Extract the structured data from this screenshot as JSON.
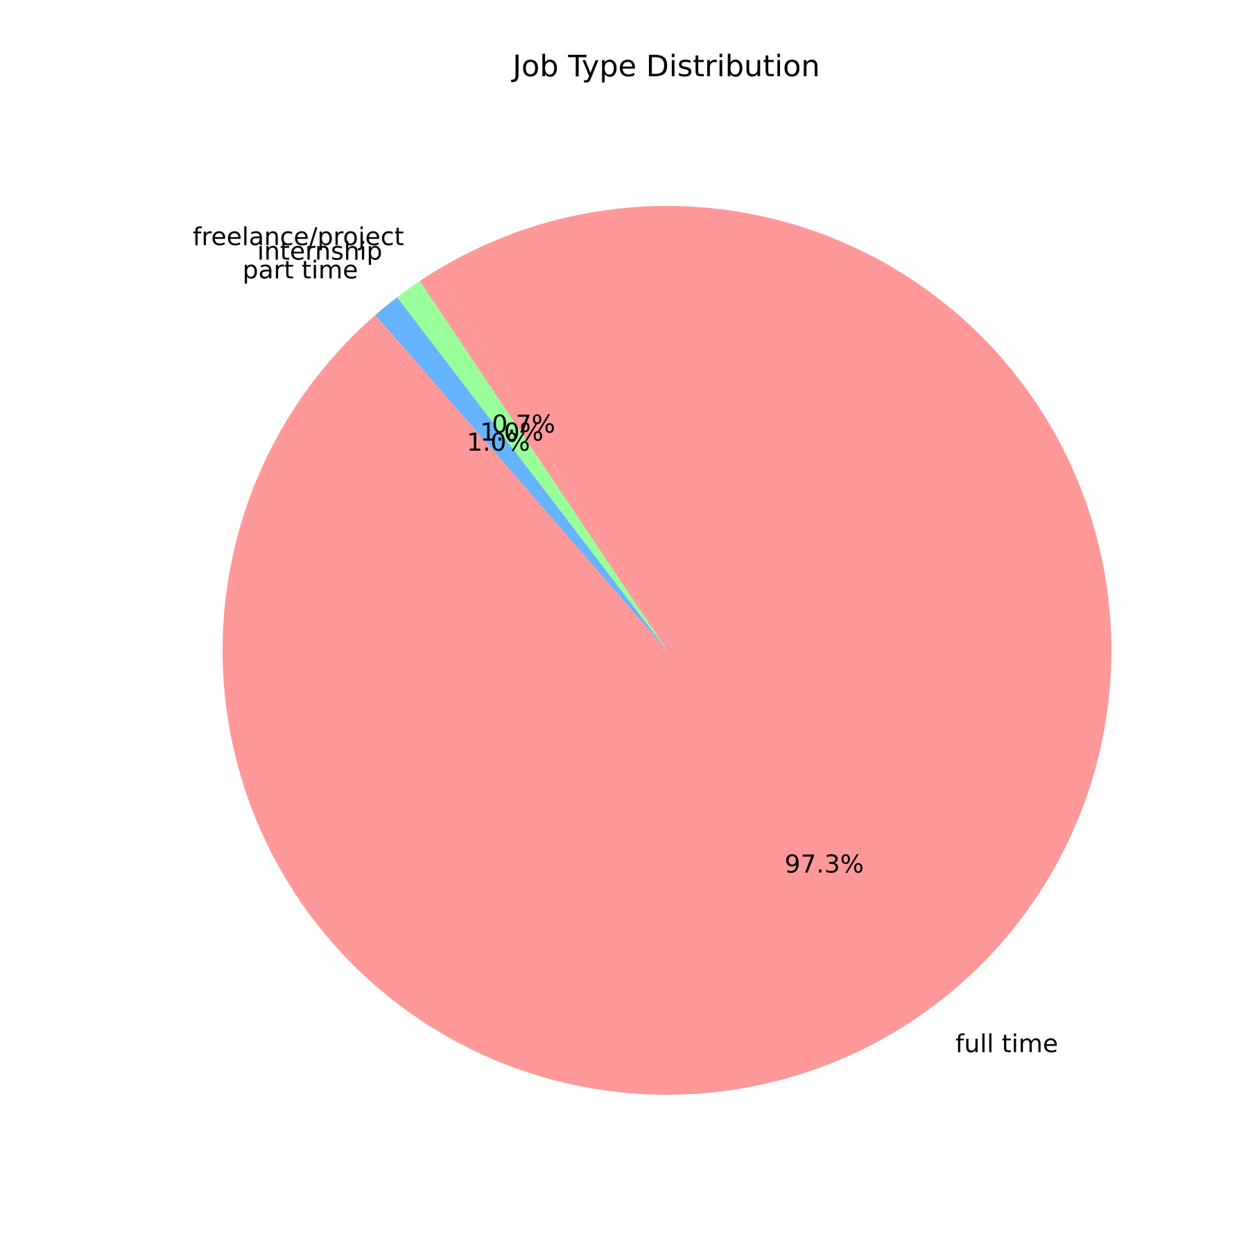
{
  "chart_data": {
    "type": "pie",
    "title": "Job Type Distribution",
    "start_angle_deg": 131,
    "direction": "counterclockwise",
    "slices": [
      {
        "label": "full time",
        "value": 97.3,
        "pct_label": "97.3%",
        "color": "#ff9999"
      },
      {
        "label": "freelance/project",
        "value": 0.7,
        "pct_label": "0.7%",
        "color": "#ff9999"
      },
      {
        "label": "internship",
        "value": 1.0,
        "pct_label": "1.0%",
        "color": "#99ff99"
      },
      {
        "label": "part time",
        "value": 1.0,
        "pct_label": "1.0%",
        "color": "#66b3ff"
      }
    ]
  }
}
